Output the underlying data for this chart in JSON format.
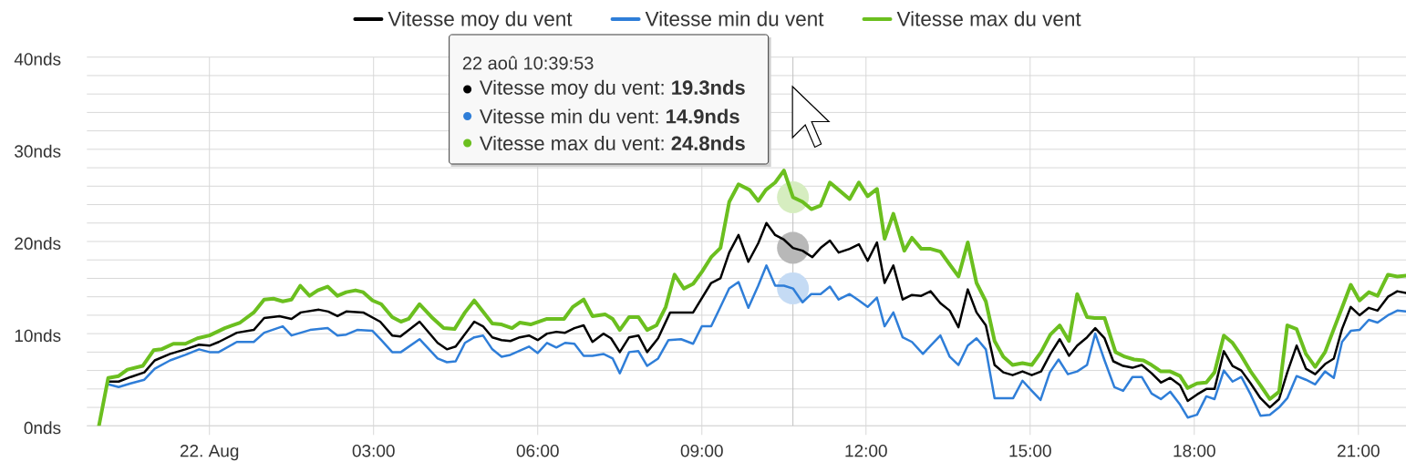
{
  "chart_data": {
    "type": "line",
    "xlim": [
      -2.24,
      21.87
    ],
    "ylim": [
      0,
      40
    ],
    "xticks": [
      {
        "value": 0,
        "label": "22. Aug"
      },
      {
        "value": 3,
        "label": "03:00"
      },
      {
        "value": 6,
        "label": "06:00"
      },
      {
        "value": 9,
        "label": "09:00"
      },
      {
        "value": 12,
        "label": "12:00"
      },
      {
        "value": 15,
        "label": "15:00"
      },
      {
        "value": 18,
        "label": "18:00"
      },
      {
        "value": 21,
        "label": "21:00"
      }
    ],
    "yticks": [
      {
        "value": 0,
        "label": "0nds"
      },
      {
        "value": 2,
        "label": null
      },
      {
        "value": 4,
        "label": null
      },
      {
        "value": 6,
        "label": null
      },
      {
        "value": 8,
        "label": null
      },
      {
        "value": 10,
        "label": "10nds"
      },
      {
        "value": 12,
        "label": null
      },
      {
        "value": 14,
        "label": null
      },
      {
        "value": 16,
        "label": null
      },
      {
        "value": 18,
        "label": null
      },
      {
        "value": 20,
        "label": "20nds"
      },
      {
        "value": 22,
        "label": null
      },
      {
        "value": 24,
        "label": null
      },
      {
        "value": 26,
        "label": null
      },
      {
        "value": 28,
        "label": null
      },
      {
        "value": 30,
        "label": "30nds"
      },
      {
        "value": 32,
        "label": null
      },
      {
        "value": 34,
        "label": null
      },
      {
        "value": 36,
        "label": null
      },
      {
        "value": 38,
        "label": null
      },
      {
        "value": 40,
        "label": "40nds"
      }
    ],
    "grid": true,
    "legend": "top",
    "series": [
      {
        "name": "Vitesse moy du vent",
        "color": "#000000",
        "x": [
          -1.85,
          -1.66,
          -1.44,
          -1.19,
          -1.0,
          -0.72,
          -0.44,
          -0.19,
          0.0,
          0.17,
          0.5,
          0.81,
          1.0,
          1.28,
          1.5,
          1.67,
          2.0,
          2.17,
          2.34,
          2.5,
          2.81,
          3.12,
          3.34,
          3.49,
          3.84,
          4.17,
          4.34,
          4.5,
          4.84,
          5.0,
          5.17,
          5.34,
          5.5,
          5.67,
          5.84,
          6.0,
          6.17,
          6.34,
          6.5,
          6.67,
          6.84,
          7.0,
          7.2,
          7.34,
          7.5,
          7.67,
          7.84,
          8.0,
          8.2,
          8.42,
          8.67,
          8.84,
          9.17,
          9.34,
          9.5,
          9.67,
          9.85,
          10.03,
          10.18,
          10.34,
          10.5,
          10.6647,
          10.84,
          11.02,
          11.17,
          11.34,
          11.5,
          11.7,
          11.87,
          12.03,
          12.2,
          12.34,
          12.5,
          12.67,
          12.84,
          13.01,
          13.18,
          13.36,
          13.53,
          13.69,
          13.86,
          14.02,
          14.19,
          14.35,
          14.51,
          14.68,
          14.86,
          15.03,
          15.2,
          15.37,
          15.54,
          15.71,
          15.86,
          16.04,
          16.19,
          16.36,
          16.52,
          16.7,
          16.87,
          17.04,
          17.22,
          17.39,
          17.56,
          17.74,
          17.88,
          18.05,
          18.22,
          18.37,
          18.54,
          18.7,
          18.86,
          19.03,
          19.21,
          19.38,
          19.55,
          19.7,
          19.87,
          20.04,
          20.21,
          20.39,
          20.55,
          20.7,
          20.86,
          21.02,
          21.19,
          21.35,
          21.54,
          21.71,
          21.87
        ],
        "values": [
          4.8,
          4.8,
          5.3,
          5.8,
          7.1,
          7.8,
          8.3,
          8.8,
          8.7,
          9.1,
          10.1,
          10.4,
          11.7,
          11.9,
          11.6,
          12.3,
          12.6,
          12.4,
          11.9,
          12.4,
          12.3,
          11.3,
          9.8,
          9.7,
          11.3,
          9.0,
          8.3,
          8.6,
          11.3,
          10.8,
          9.6,
          9.3,
          9.2,
          9.6,
          9.8,
          9.3,
          10.0,
          10.2,
          10.1,
          10.6,
          10.9,
          9.1,
          10.0,
          9.5,
          8.0,
          9.6,
          9.8,
          8.0,
          9.5,
          12.3,
          12.3,
          12.3,
          15.5,
          16.0,
          18.8,
          20.7,
          17.8,
          19.8,
          22.0,
          20.7,
          20.2,
          19.3,
          19.0,
          18.3,
          19.3,
          20.1,
          18.8,
          19.2,
          19.7,
          17.9,
          19.9,
          15.5,
          17.4,
          13.7,
          14.2,
          14.1,
          14.6,
          13.3,
          12.5,
          10.7,
          14.8,
          12.3,
          10.9,
          6.6,
          5.8,
          5.5,
          5.9,
          5.5,
          5.9,
          7.8,
          9.4,
          7.6,
          8.7,
          9.6,
          10.6,
          9.5,
          7.0,
          6.5,
          6.3,
          6.6,
          5.7,
          4.7,
          5.2,
          4.4,
          2.7,
          3.4,
          4.0,
          4.0,
          8.1,
          6.5,
          6.0,
          4.6,
          3.0,
          2.0,
          2.9,
          5.8,
          8.7,
          6.2,
          5.6,
          6.7,
          7.3,
          10.5,
          12.9,
          12.0,
          12.8,
          12.5,
          14.0,
          14.6,
          14.4
        ]
      },
      {
        "name": "Vitesse min du vent",
        "color": "#2f7ed8",
        "x": [
          -1.85,
          -1.66,
          -1.44,
          -1.19,
          -1.0,
          -0.72,
          -0.44,
          -0.19,
          0.0,
          0.17,
          0.5,
          0.81,
          1.0,
          1.34,
          1.5,
          1.84,
          2.16,
          2.34,
          2.5,
          2.7,
          2.98,
          3.14,
          3.34,
          3.5,
          3.84,
          4.17,
          4.34,
          4.5,
          4.67,
          4.84,
          5.0,
          5.17,
          5.34,
          5.5,
          5.84,
          6.0,
          6.17,
          6.34,
          6.5,
          6.67,
          6.84,
          7.0,
          7.2,
          7.37,
          7.5,
          7.67,
          7.84,
          8.0,
          8.2,
          8.39,
          8.62,
          8.84,
          9.0,
          9.17,
          9.34,
          9.5,
          9.67,
          9.85,
          10.03,
          10.18,
          10.34,
          10.5,
          10.6647,
          10.84,
          11.0,
          11.17,
          11.34,
          11.5,
          11.7,
          11.87,
          12.03,
          12.2,
          12.34,
          12.5,
          12.67,
          12.84,
          13.04,
          13.18,
          13.36,
          13.53,
          13.69,
          13.86,
          14.02,
          14.19,
          14.35,
          14.52,
          14.69,
          14.86,
          15.03,
          15.19,
          15.36,
          15.52,
          15.69,
          15.86,
          16.04,
          16.19,
          16.36,
          16.54,
          16.7,
          16.87,
          17.04,
          17.22,
          17.39,
          17.56,
          17.74,
          17.88,
          18.05,
          18.22,
          18.37,
          18.54,
          18.7,
          18.86,
          19.03,
          19.21,
          19.38,
          19.55,
          19.7,
          19.87,
          20.04,
          20.21,
          20.39,
          20.55,
          20.7,
          20.86,
          21.02,
          21.19,
          21.35,
          21.54,
          21.71,
          21.87
        ],
        "values": [
          4.5,
          4.2,
          4.6,
          5.0,
          6.2,
          7.1,
          7.7,
          8.3,
          8.0,
          8.0,
          9.1,
          9.1,
          10.1,
          10.8,
          9.8,
          10.4,
          10.6,
          9.8,
          9.9,
          10.4,
          10.3,
          9.3,
          8.0,
          8.0,
          9.4,
          7.3,
          6.9,
          7.0,
          9.0,
          9.6,
          9.8,
          8.3,
          7.5,
          7.7,
          8.6,
          7.9,
          9.0,
          8.5,
          9.0,
          8.9,
          7.6,
          7.6,
          7.8,
          7.3,
          5.7,
          8.0,
          8.1,
          6.5,
          7.3,
          9.3,
          9.4,
          8.9,
          10.8,
          10.8,
          12.9,
          14.9,
          15.6,
          12.8,
          15.2,
          17.4,
          15.2,
          15.2,
          14.9,
          13.4,
          14.3,
          14.3,
          15.1,
          13.7,
          14.3,
          13.6,
          12.9,
          13.9,
          10.8,
          12.3,
          9.6,
          9.1,
          7.8,
          8.7,
          9.8,
          7.5,
          6.6,
          8.7,
          9.5,
          8.3,
          3.0,
          3.0,
          3.0,
          4.9,
          3.8,
          2.8,
          5.8,
          7.2,
          5.6,
          5.9,
          6.6,
          10.0,
          7.1,
          4.2,
          3.8,
          5.3,
          5.3,
          3.5,
          2.9,
          3.7,
          2.3,
          0.9,
          1.2,
          3.2,
          2.9,
          6.0,
          4.8,
          5.3,
          3.4,
          1.1,
          1.2,
          2.0,
          3.0,
          5.4,
          5.0,
          4.5,
          5.9,
          5.2,
          9.1,
          10.3,
          10.4,
          11.5,
          11.2,
          12.0,
          12.5,
          12.4
        ]
      },
      {
        "name": "Vitesse max du vent",
        "color": "#6bbf1f",
        "x": [
          -2.02,
          -1.85,
          -1.66,
          -1.5,
          -1.22,
          -1.02,
          -0.88,
          -0.66,
          -0.44,
          -0.22,
          0.0,
          0.28,
          0.56,
          0.81,
          1.0,
          1.17,
          1.34,
          1.5,
          1.66,
          1.83,
          1.98,
          2.16,
          2.34,
          2.5,
          2.67,
          2.81,
          2.98,
          3.14,
          3.34,
          3.5,
          3.64,
          3.84,
          4.06,
          4.28,
          4.48,
          4.67,
          4.84,
          5.17,
          5.34,
          5.53,
          5.67,
          5.87,
          6.17,
          6.48,
          6.64,
          6.84,
          7.0,
          7.23,
          7.37,
          7.5,
          7.67,
          7.84,
          8.0,
          8.17,
          8.34,
          8.5,
          8.67,
          8.84,
          9.0,
          9.17,
          9.34,
          9.5,
          9.67,
          9.87,
          10.03,
          10.17,
          10.34,
          10.5,
          10.6647,
          10.84,
          11.0,
          11.17,
          11.34,
          11.5,
          11.7,
          11.87,
          12.03,
          12.2,
          12.34,
          12.5,
          12.7,
          12.84,
          13.01,
          13.18,
          13.36,
          13.53,
          13.69,
          13.86,
          14.02,
          14.19,
          14.35,
          14.51,
          14.68,
          14.86,
          15.03,
          15.2,
          15.37,
          15.54,
          15.71,
          15.86,
          16.04,
          16.18,
          16.36,
          16.56,
          16.73,
          16.9,
          17.07,
          17.22,
          17.39,
          17.56,
          17.74,
          17.88,
          18.05,
          18.22,
          18.37,
          18.54,
          18.7,
          18.86,
          19.03,
          19.21,
          19.38,
          19.55,
          19.7,
          19.87,
          20.04,
          20.21,
          20.39,
          20.55,
          20.7,
          20.86,
          21.02,
          21.19,
          21.35,
          21.54,
          21.71,
          21.87
        ],
        "values": [
          0,
          5.2,
          5.4,
          6.1,
          6.5,
          8.2,
          8.3,
          8.9,
          8.9,
          9.5,
          9.8,
          10.6,
          11.2,
          12.3,
          13.7,
          13.8,
          13.5,
          13.7,
          15.2,
          14.1,
          14.7,
          15.1,
          14.1,
          14.5,
          14.7,
          14.5,
          13.6,
          13.2,
          11.8,
          11.3,
          11.6,
          13.2,
          11.8,
          10.6,
          10.5,
          12.3,
          13.6,
          11.1,
          11.0,
          10.6,
          11.2,
          11.0,
          11.6,
          11.6,
          12.9,
          13.7,
          11.9,
          12.1,
          11.6,
          10.4,
          11.8,
          11.8,
          10.4,
          10.9,
          12.9,
          16.4,
          14.9,
          15.4,
          16.7,
          18.3,
          19.3,
          24.3,
          26.2,
          25.6,
          24.4,
          25.6,
          26.4,
          27.7,
          24.8,
          24.3,
          23.5,
          23.9,
          26.4,
          25.6,
          24.6,
          26.4,
          24.9,
          25.7,
          20.3,
          23.0,
          19.0,
          20.4,
          19.2,
          19.2,
          18.9,
          17.5,
          16.2,
          19.9,
          15.5,
          13.5,
          9.2,
          7.5,
          6.6,
          6.8,
          6.6,
          8.0,
          9.9,
          10.9,
          9.2,
          14.3,
          11.8,
          11.7,
          11.7,
          8.0,
          7.5,
          7.2,
          7.1,
          6.6,
          5.9,
          5.9,
          5.4,
          4.1,
          4.6,
          4.7,
          5.8,
          9.8,
          9.0,
          7.6,
          5.9,
          4.4,
          2.9,
          3.7,
          10.9,
          10.5,
          7.8,
          6.4,
          8.0,
          10.5,
          12.8,
          15.3,
          13.6,
          14.5,
          14.1,
          16.4,
          16.2,
          16.3
        ]
      }
    ],
    "ref_lines": [
      {
        "axis": "x",
        "value": 10.6647,
        "color": "#c0c0c0"
      }
    ],
    "annotations": [
      "22 aoû 10:39:53",
      "Vitesse moy du vent: **19.3nds**",
      "Vitesse min du vent: **14.9nds**",
      "Vitesse max du vent: **24.8nds**"
    ]
  }
}
